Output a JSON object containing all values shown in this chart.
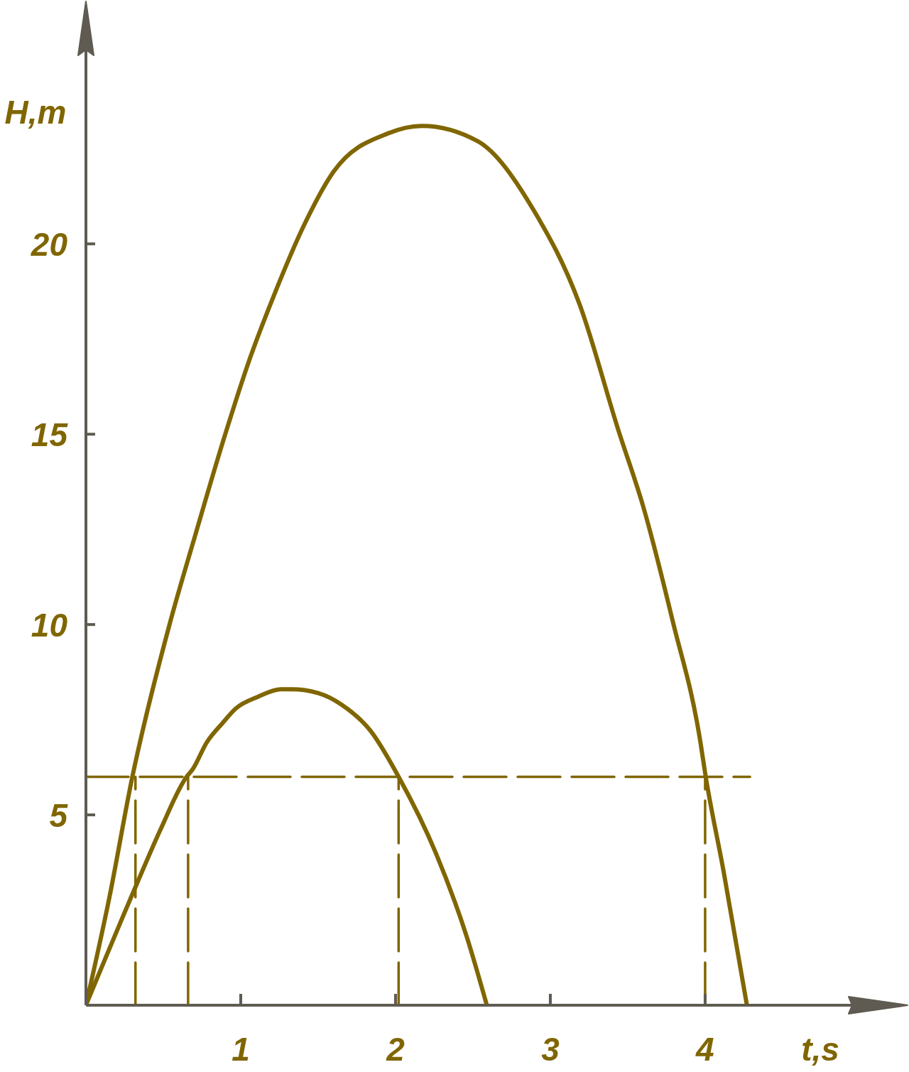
{
  "chart_data": {
    "type": "line",
    "xlabel": "t,s",
    "ylabel": "H,m",
    "xlim": [
      0,
      4.95
    ],
    "ylim": [
      0,
      25.1
    ],
    "xticks": [
      1,
      2,
      3,
      4
    ],
    "yticks": [
      5,
      10,
      15,
      20
    ],
    "line_style": "solid",
    "series": [
      {
        "color": "#806600",
        "x": [
          0,
          0.15,
          0.3,
          0.54,
          0.71,
          0.9,
          1.06,
          1.21,
          1.41,
          1.6,
          1.95,
          2.17,
          2.53,
          2.89,
          3.19,
          3.44,
          3.6,
          3.79,
          3.97,
          4.0,
          4.12,
          4.27
        ],
        "values": [
          0,
          2.8,
          6.0,
          10.0,
          12.4,
          15.0,
          17.0,
          18.6,
          20.5,
          21.9,
          22.9,
          23.1,
          22.7,
          20.9,
          18.4,
          15.1,
          13.1,
          10.1,
          6.9,
          6.1,
          3.5,
          0
        ]
      },
      {
        "color": "#806600",
        "x": [
          0,
          0.33,
          0.48,
          0.65,
          0.69,
          0.78,
          0.88,
          0.97,
          1.11,
          1.26,
          1.33,
          1.5,
          1.65,
          1.84,
          2.02,
          2.26,
          2.46,
          2.59
        ],
        "values": [
          0,
          3.2,
          4.6,
          6.0,
          6.2,
          6.9,
          7.4,
          7.8,
          8.1,
          8.3,
          8.3,
          8.2,
          7.9,
          7.2,
          6.0,
          4.0,
          1.8,
          0
        ]
      },
      {
        "color": "#806600",
        "line_style": "dashed",
        "x": [
          0,
          4.29
        ],
        "values": [
          6,
          6
        ]
      },
      {
        "color": "#806600",
        "line_style": "dashed",
        "x": [
          0.32,
          0.32
        ],
        "values": [
          0,
          6
        ]
      },
      {
        "color": "#806600",
        "line_style": "dashed",
        "x": [
          0.66,
          0.66
        ],
        "values": [
          0,
          6
        ]
      },
      {
        "color": "#806600",
        "line_style": "dashed",
        "x": [
          2.02,
          2.02
        ],
        "values": [
          0,
          6
        ]
      },
      {
        "color": "#806600",
        "line_style": "dashed",
        "x": [
          4.0,
          4.0
        ],
        "values": [
          0,
          6
        ]
      }
    ]
  }
}
